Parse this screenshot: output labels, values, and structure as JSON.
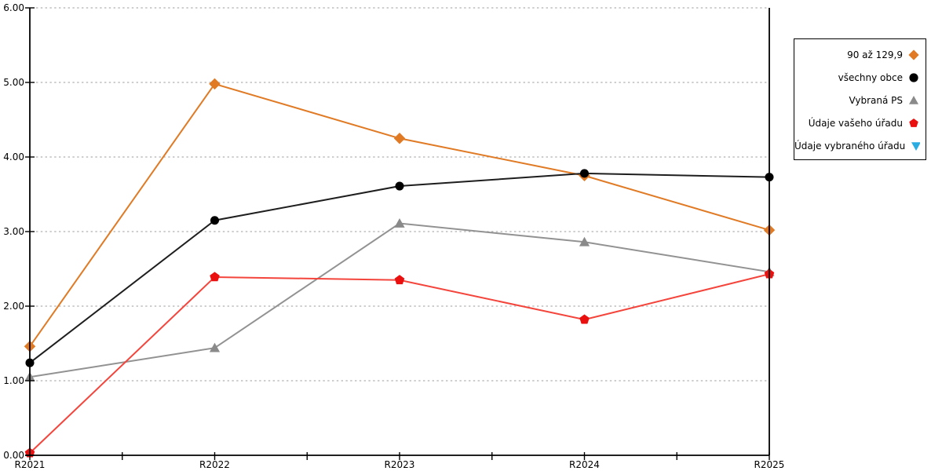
{
  "chart_data": {
    "type": "line",
    "title": "",
    "xlabel": "",
    "ylabel": "",
    "categories": [
      "R2021",
      "R2022",
      "R2023",
      "R2024",
      "R2025"
    ],
    "series": [
      {
        "name": "90 až 129,9",
        "marker": "diamond",
        "color": "#E07A24",
        "line_color": "#E07A24",
        "values": [
          1.46,
          4.98,
          4.25,
          3.75,
          3.02
        ]
      },
      {
        "name": "všechny obce",
        "marker": "circle",
        "color": "#000000",
        "line_color": "#1E1E1E",
        "values": [
          1.24,
          3.15,
          3.61,
          3.78,
          3.73
        ]
      },
      {
        "name": "Vybraná PS",
        "marker": "triangle-up",
        "color": "#8A8A8A",
        "line_color": "#929292",
        "values": [
          1.05,
          1.44,
          3.11,
          2.86,
          2.46
        ]
      },
      {
        "name": "Údaje vašeho úřadu",
        "marker": "pentagon",
        "color": "#EB1010",
        "line_color": "#F4453C",
        "values": [
          0.03,
          2.39,
          2.35,
          1.82,
          2.43
        ]
      },
      {
        "name": "Údaje vybraného úřadu",
        "marker": "triangle-down",
        "color": "#29ACE2",
        "line_color": "#29ACE2",
        "values": []
      }
    ],
    "ylim": [
      0,
      6
    ],
    "y_tick_labels": [
      "0.00",
      "1.00",
      "2.00",
      "3.00",
      "4.00",
      "5.00",
      "6.00"
    ],
    "x_minor_ticks_per_interval": 2,
    "grid": "horizontal-dotted",
    "legend_position": "outside-top-right",
    "z_order": [
      0,
      2,
      3,
      1,
      4
    ]
  },
  "colors": {
    "background": "#FFFFFF",
    "axis": "#000000",
    "gridline": "#B0B0B0",
    "text": "#000000",
    "legend_border": "#000000"
  }
}
